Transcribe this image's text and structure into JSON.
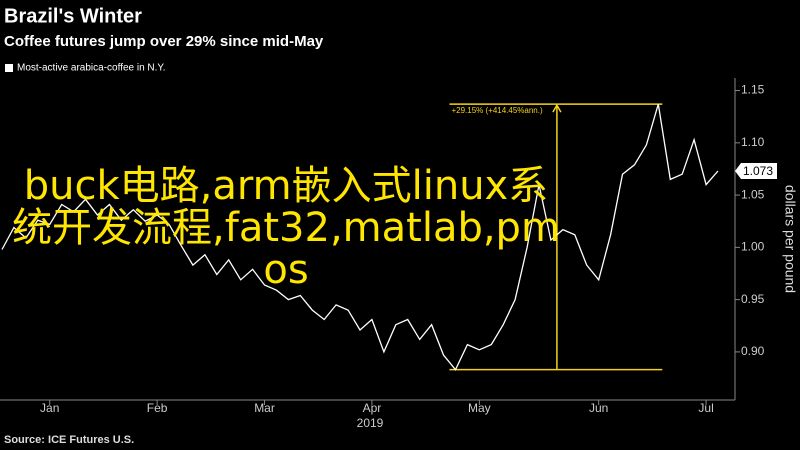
{
  "chart_data": {
    "type": "line",
    "title": "Brazil's Winter",
    "subtitle": "Coffee futures jump over 29% since mid-May",
    "legend_label": "Most-active arabica-coffee in N.Y.",
    "source": "Source: ICE Futures U.S.",
    "x_year_label": "2019",
    "y_axis_label": "dollars per pound",
    "color": "#ffffff",
    "categories": [
      null,
      null,
      null,
      null,
      "Jan",
      null,
      null,
      null,
      null,
      null,
      null,
      null,
      null,
      "Feb",
      null,
      null,
      null,
      null,
      null,
      null,
      null,
      null,
      "Mar",
      null,
      null,
      null,
      null,
      null,
      null,
      null,
      null,
      "Apr",
      null,
      null,
      null,
      null,
      null,
      null,
      null,
      null,
      "May",
      null,
      null,
      null,
      null,
      null,
      null,
      null,
      null,
      null,
      "Jun",
      null,
      null,
      null,
      null,
      null,
      null,
      null,
      null,
      "Jul",
      null
    ],
    "values": [
      0.998,
      1.019,
      1.009,
      1.026,
      1.022,
      1.041,
      1.034,
      1.046,
      1.031,
      1.041,
      1.026,
      1.036,
      1.025,
      1.031,
      1.022,
      1.002,
      0.983,
      0.993,
      0.974,
      0.988,
      0.969,
      0.979,
      0.964,
      0.959,
      0.95,
      0.954,
      0.94,
      0.931,
      0.945,
      0.94,
      0.921,
      0.931,
      0.9,
      0.926,
      0.931,
      0.912,
      0.926,
      0.897,
      0.883,
      0.907,
      0.902,
      0.907,
      0.926,
      0.95,
      1.0,
      1.06,
      1.007,
      1.017,
      1.012,
      0.983,
      0.969,
      1.012,
      1.07,
      1.079,
      1.098,
      1.137,
      1.065,
      1.07,
      1.103,
      1.06,
      1.073
    ],
    "ylim": [
      0.854,
      1.162
    ],
    "yticks": [
      {
        "value": 0.9,
        "label": "0.90"
      },
      {
        "value": 0.95,
        "label": "0.95"
      },
      {
        "value": 1.0,
        "label": "1.00"
      },
      {
        "value": 1.05,
        "label": "1.05"
      },
      {
        "value": 1.1,
        "label": "1.10"
      },
      {
        "value": 1.15,
        "label": "1.15"
      }
    ],
    "annotation": {
      "text": "+29.15% (+414.45%ann.)",
      "low": 0.883,
      "high": 1.137,
      "color": "#f5d21a"
    },
    "overlay_text": "buck电路,arm嵌入式linux系统开发流程,fat32,matlab,pmos",
    "overlay_color": "#ffe600"
  }
}
